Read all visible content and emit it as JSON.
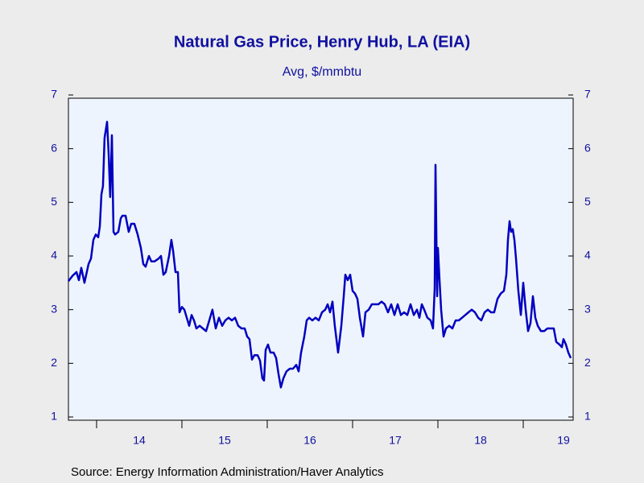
{
  "chart_data": {
    "type": "line",
    "title": "Natural Gas Price, Henry Hub, LA (EIA)",
    "subtitle": "Avg, $/mmbtu",
    "source": "Source:  Energy Information Administration/Haver Analytics",
    "color": "#0000c0",
    "x": [
      2013.67,
      2013.717,
      2013.764,
      2013.793,
      2013.821,
      2013.858,
      2013.906,
      2013.934,
      2013.962,
      2013.991,
      2014.019,
      2014.038,
      2014.057,
      2014.075,
      2014.094,
      2014.123,
      2014.142,
      2014.16,
      2014.179,
      2014.198,
      2014.217,
      2014.255,
      2014.283,
      2014.302,
      2014.34,
      2014.377,
      2014.406,
      2014.443,
      2014.481,
      2014.519,
      2014.547,
      2014.575,
      2014.613,
      2014.642,
      2014.679,
      2014.726,
      2014.755,
      2014.783,
      2014.811,
      2014.849,
      2014.877,
      2014.896,
      2014.925,
      2014.953,
      2014.972,
      2015.0,
      2015.028,
      2015.057,
      2015.085,
      2015.113,
      2015.142,
      2015.17,
      2015.208,
      2015.245,
      2015.283,
      2015.321,
      2015.358,
      2015.396,
      2015.434,
      2015.472,
      2015.509,
      2015.547,
      2015.585,
      2015.623,
      2015.66,
      2015.698,
      2015.736,
      2015.764,
      2015.792,
      2015.821,
      2015.849,
      2015.887,
      2015.915,
      2015.943,
      2015.962,
      2015.981,
      2016.009,
      2016.038,
      2016.075,
      2016.104,
      2016.132,
      2016.16,
      2016.189,
      2016.226,
      2016.264,
      2016.302,
      2016.34,
      2016.368,
      2016.396,
      2016.434,
      2016.462,
      2016.491,
      2016.528,
      2016.566,
      2016.604,
      2016.642,
      2016.679,
      2016.708,
      2016.736,
      2016.764,
      2016.792,
      2016.83,
      2016.868,
      2016.896,
      2016.915,
      2016.943,
      2016.972,
      2017.0,
      2017.028,
      2017.057,
      2017.085,
      2017.123,
      2017.151,
      2017.189,
      2017.226,
      2017.255,
      2017.302,
      2017.34,
      2017.377,
      2017.415,
      2017.453,
      2017.491,
      2017.528,
      2017.566,
      2017.604,
      2017.642,
      2017.679,
      2017.717,
      2017.755,
      2017.783,
      2017.811,
      2017.84,
      2017.877,
      2017.915,
      2017.943,
      2017.962,
      2017.972,
      2017.991,
      2018.0,
      2018.019,
      2018.038,
      2018.066,
      2018.094,
      2018.132,
      2018.17,
      2018.208,
      2018.245,
      2018.283,
      2018.321,
      2018.358,
      2018.396,
      2018.434,
      2018.472,
      2018.509,
      2018.547,
      2018.585,
      2018.623,
      2018.66,
      2018.698,
      2018.736,
      2018.774,
      2018.802,
      2018.821,
      2018.84,
      2018.858,
      2018.877,
      2018.896,
      2018.915,
      2018.943,
      2018.972,
      2019.0,
      2019.028,
      2019.057,
      2019.085,
      2019.113,
      2019.142,
      2019.17,
      2019.208,
      2019.245,
      2019.283,
      2019.321,
      2019.358,
      2019.387,
      2019.425,
      2019.453,
      2019.472,
      2019.5,
      2019.528,
      2019.557
    ],
    "values": [
      3.53,
      3.63,
      3.7,
      3.55,
      3.78,
      3.5,
      3.85,
      3.95,
      4.3,
      4.4,
      4.35,
      4.55,
      5.15,
      5.3,
      6.2,
      6.5,
      5.9,
      5.1,
      6.25,
      4.45,
      4.4,
      4.45,
      4.7,
      4.75,
      4.75,
      4.45,
      4.6,
      4.6,
      4.4,
      4.15,
      3.85,
      3.8,
      4.0,
      3.9,
      3.9,
      3.95,
      4.0,
      3.65,
      3.7,
      4.0,
      4.3,
      4.1,
      3.7,
      3.7,
      2.95,
      3.05,
      3.0,
      2.85,
      2.7,
      2.9,
      2.8,
      2.65,
      2.7,
      2.65,
      2.6,
      2.8,
      3.0,
      2.65,
      2.85,
      2.7,
      2.8,
      2.85,
      2.8,
      2.85,
      2.7,
      2.65,
      2.65,
      2.5,
      2.45,
      2.07,
      2.15,
      2.15,
      2.05,
      1.72,
      1.68,
      2.25,
      2.35,
      2.2,
      2.2,
      2.1,
      1.8,
      1.55,
      1.72,
      1.85,
      1.9,
      1.9,
      1.97,
      1.85,
      2.2,
      2.5,
      2.8,
      2.85,
      2.8,
      2.85,
      2.8,
      2.95,
      3.0,
      3.1,
      2.95,
      3.15,
      2.7,
      2.2,
      2.7,
      3.25,
      3.65,
      3.55,
      3.65,
      3.35,
      3.3,
      3.2,
      2.85,
      2.5,
      2.95,
      3.0,
      3.1,
      3.1,
      3.1,
      3.15,
      3.1,
      2.95,
      3.1,
      2.9,
      3.1,
      2.9,
      2.95,
      2.9,
      3.1,
      2.9,
      3.0,
      2.85,
      3.1,
      3.0,
      2.85,
      2.8,
      2.65,
      3.4,
      5.7,
      3.25,
      4.15,
      3.55,
      3.0,
      2.5,
      2.65,
      2.7,
      2.65,
      2.8,
      2.8,
      2.85,
      2.9,
      2.95,
      3.0,
      2.95,
      2.85,
      2.8,
      2.95,
      3.0,
      2.95,
      2.95,
      3.2,
      3.3,
      3.35,
      3.65,
      4.3,
      4.65,
      4.45,
      4.5,
      4.3,
      3.95,
      3.35,
      2.9,
      3.5,
      3.0,
      2.6,
      2.75,
      3.25,
      2.85,
      2.7,
      2.6,
      2.6,
      2.65,
      2.65,
      2.65,
      2.4,
      2.35,
      2.3,
      2.45,
      2.35,
      2.2,
      2.1
    ],
    "xlim": [
      2013.67,
      2019.585
    ],
    "xticks": [
      {
        "value": 2014,
        "label": "14"
      },
      {
        "value": 2015,
        "label": "15"
      },
      {
        "value": 2016,
        "label": "16"
      },
      {
        "value": 2017,
        "label": "17"
      },
      {
        "value": 2018,
        "label": "18"
      },
      {
        "value": 2019,
        "label": "19"
      }
    ],
    "ylim": [
      1,
      7
    ],
    "yticks": [
      1,
      2,
      3,
      4,
      5,
      6,
      7
    ]
  }
}
